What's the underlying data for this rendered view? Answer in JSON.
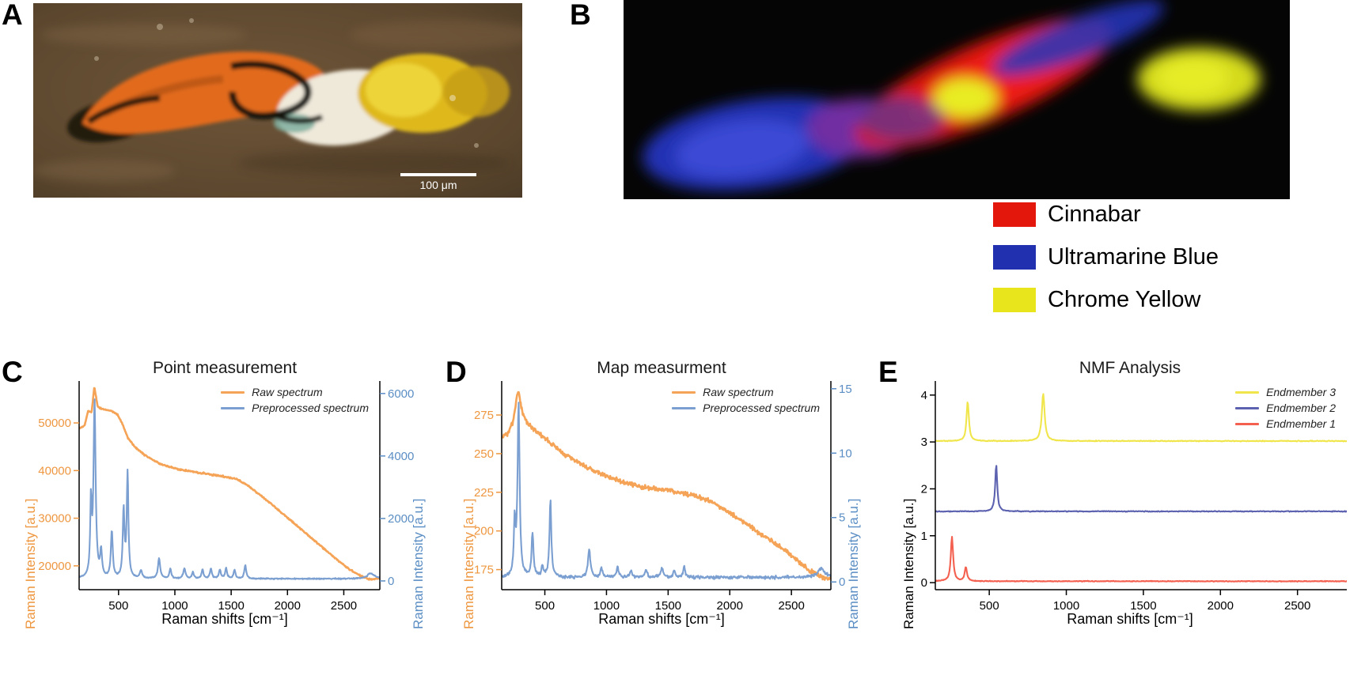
{
  "panel_labels": {
    "a": "A",
    "b": "B",
    "c": "C",
    "d": "D",
    "e": "E"
  },
  "panelA": {
    "scale_label": "100 μm"
  },
  "pigment_legend": [
    {
      "label": "Cinnabar",
      "color": "#e3170c"
    },
    {
      "label": "Ultramarine Blue",
      "color": "#2030ae"
    },
    {
      "label": "Chrome Yellow",
      "color": "#e8e51c"
    }
  ],
  "chart_data": [
    {
      "id": "c",
      "type": "line",
      "title": "Point measurement",
      "xlabel": "Raman shifts [cm⁻¹]",
      "x_range": [
        150,
        2820
      ],
      "x_ticks": [
        500,
        1000,
        1500,
        2000,
        2500
      ],
      "axes": {
        "left": {
          "label": "Raman Intensity [a.u.]",
          "color": "#ee9740",
          "range": [
            15000,
            58800
          ],
          "ticks": [
            20000,
            30000,
            40000,
            50000
          ]
        },
        "right": {
          "label": "Raman Intensity [a.u.]",
          "color": "#5b8ec4",
          "range": [
            -280,
            6400
          ],
          "ticks": [
            0,
            2000,
            4000,
            6000
          ]
        }
      },
      "legend": [
        {
          "label": "Raw spectrum",
          "color": "#f5a356"
        },
        {
          "label": "Preprocessed spectrum",
          "color": "#7a9fd0"
        }
      ],
      "series": [
        {
          "name": "Raw spectrum",
          "axis": "left",
          "color": "#f5a356",
          "noise": 230,
          "seed": 5,
          "anchors": [
            [
              150,
              48800
            ],
            [
              200,
              49500
            ],
            [
              230,
              52600
            ],
            [
              260,
              52100
            ],
            [
              285,
              57600
            ],
            [
              315,
              53400
            ],
            [
              360,
              52900
            ],
            [
              430,
              52600
            ],
            [
              490,
              51800
            ],
            [
              540,
              49500
            ],
            [
              580,
              47000
            ],
            [
              650,
              44800
            ],
            [
              750,
              43000
            ],
            [
              850,
              41600
            ],
            [
              950,
              40800
            ],
            [
              1050,
              40200
            ],
            [
              1200,
              39600
            ],
            [
              1350,
              39100
            ],
            [
              1450,
              38700
            ],
            [
              1550,
              38200
            ],
            [
              1650,
              36800
            ],
            [
              1750,
              35000
            ],
            [
              1850,
              33100
            ],
            [
              1950,
              31100
            ],
            [
              2050,
              29100
            ],
            [
              2150,
              27100
            ],
            [
              2250,
              25100
            ],
            [
              2350,
              23100
            ],
            [
              2450,
              21100
            ],
            [
              2550,
              19300
            ],
            [
              2650,
              17900
            ],
            [
              2720,
              17200
            ],
            [
              2820,
              17400
            ]
          ]
        },
        {
          "name": "Preprocessed spectrum",
          "axis": "right",
          "color": "#7a9fd0",
          "noise": 28,
          "seed": 9,
          "baseline": 70,
          "peaks": [
            [
              255,
              2300,
              8
            ],
            [
              287,
              5600,
              11
            ],
            [
              345,
              800,
              10
            ],
            [
              440,
              1500,
              10
            ],
            [
              545,
              2150,
              9
            ],
            [
              580,
              3350,
              9
            ],
            [
              700,
              240,
              12
            ],
            [
              860,
              640,
              12
            ],
            [
              960,
              300,
              10
            ],
            [
              1085,
              320,
              12
            ],
            [
              1160,
              200,
              10
            ],
            [
              1245,
              290,
              10
            ],
            [
              1320,
              330,
              10
            ],
            [
              1400,
              280,
              10
            ],
            [
              1455,
              330,
              10
            ],
            [
              1530,
              280,
              10
            ],
            [
              1625,
              430,
              10
            ],
            [
              2740,
              170,
              40
            ]
          ]
        }
      ]
    },
    {
      "id": "d",
      "type": "line",
      "title": "Map measurment",
      "xlabel": "Raman shifts [cm⁻¹]",
      "x_range": [
        150,
        2820
      ],
      "x_ticks": [
        500,
        1000,
        1500,
        2000,
        2500
      ],
      "axes": {
        "left": {
          "label": "Raman Intensity [a.u.]",
          "color": "#ee9740",
          "range": [
            162,
            297
          ],
          "ticks": [
            175,
            200,
            225,
            250,
            275
          ]
        },
        "right": {
          "label": "Raman Intensity [a.u.]",
          "color": "#5b8ec4",
          "range": [
            -0.6,
            15.6
          ],
          "ticks": [
            0,
            5,
            10,
            15
          ]
        }
      },
      "legend": [
        {
          "label": "Raw spectrum",
          "color": "#f5a356"
        },
        {
          "label": "Preprocessed spectrum",
          "color": "#7a9fd0"
        }
      ],
      "series": [
        {
          "name": "Raw spectrum",
          "axis": "left",
          "color": "#f5a356",
          "noise": 2.1,
          "seed": 3,
          "anchors": [
            [
              150,
              261
            ],
            [
              200,
              263
            ],
            [
              240,
              270
            ],
            [
              285,
              291
            ],
            [
              320,
              276
            ],
            [
              360,
              270
            ],
            [
              420,
              265
            ],
            [
              480,
              261
            ],
            [
              560,
              256
            ],
            [
              640,
              251
            ],
            [
              720,
              247
            ],
            [
              820,
              242
            ],
            [
              920,
              238
            ],
            [
              1020,
              235
            ],
            [
              1150,
              231
            ],
            [
              1280,
              229
            ],
            [
              1400,
              227
            ],
            [
              1520,
              226
            ],
            [
              1650,
              224
            ],
            [
              1750,
              222
            ],
            [
              1850,
              219
            ],
            [
              1950,
              214
            ],
            [
              2050,
              209
            ],
            [
              2150,
              204
            ],
            [
              2250,
              198
            ],
            [
              2350,
              193
            ],
            [
              2450,
              187
            ],
            [
              2550,
              181
            ],
            [
              2650,
              174
            ],
            [
              2750,
              170
            ],
            [
              2820,
              169
            ]
          ]
        },
        {
          "name": "Preprocessed spectrum",
          "axis": "right",
          "color": "#7a9fd0",
          "noise": 0.18,
          "seed": 8,
          "baseline": 0.35,
          "peaks": [
            [
              255,
              4.0,
              8
            ],
            [
              287,
              13.4,
              10
            ],
            [
              400,
              3.4,
              9
            ],
            [
              480,
              0.8,
              10
            ],
            [
              545,
              6.0,
              9
            ],
            [
              860,
              2.1,
              12
            ],
            [
              960,
              0.7,
              10
            ],
            [
              1090,
              0.8,
              10
            ],
            [
              1200,
              0.5,
              12
            ],
            [
              1320,
              0.6,
              12
            ],
            [
              1450,
              0.7,
              12
            ],
            [
              1550,
              0.5,
              10
            ],
            [
              1630,
              0.8,
              10
            ],
            [
              2740,
              0.7,
              35
            ]
          ]
        }
      ]
    },
    {
      "id": "e",
      "type": "line",
      "title": "NMF Analysis",
      "xlabel": "Raman shifts [cm⁻¹]",
      "x_range": [
        150,
        2820
      ],
      "x_ticks": [
        500,
        1000,
        1500,
        2000,
        2500
      ],
      "axes": {
        "left": {
          "label": "Raman Intensity [a.u.]",
          "color": "#000000",
          "range": [
            -0.15,
            4.3
          ],
          "ticks": [
            0,
            1,
            2,
            3,
            4
          ]
        }
      },
      "legend": [
        {
          "label": "Endmember 3",
          "color": "#f0e64c"
        },
        {
          "label": "Endmember 2",
          "color": "#5d62b0"
        },
        {
          "label": "Endmember 1",
          "color": "#f4604f"
        }
      ],
      "series": [
        {
          "name": "Endmember 3",
          "axis": "left",
          "color": "#f0e64c",
          "noise": 0.013,
          "seed": 21,
          "baseline": 3.02,
          "peaks": [
            [
              360,
              0.85,
              9
            ],
            [
              850,
              1.02,
              11
            ]
          ]
        },
        {
          "name": "Endmember 2",
          "axis": "left",
          "color": "#5d62b0",
          "noise": 0.012,
          "seed": 22,
          "baseline": 1.52,
          "peaks": [
            [
              545,
              1.0,
              8
            ]
          ]
        },
        {
          "name": "Endmember 1",
          "axis": "left",
          "color": "#f4604f",
          "noise": 0.012,
          "seed": 23,
          "baseline": 0.03,
          "peaks": [
            [
              258,
              0.95,
              9
            ],
            [
              348,
              0.3,
              9
            ]
          ]
        }
      ]
    }
  ]
}
